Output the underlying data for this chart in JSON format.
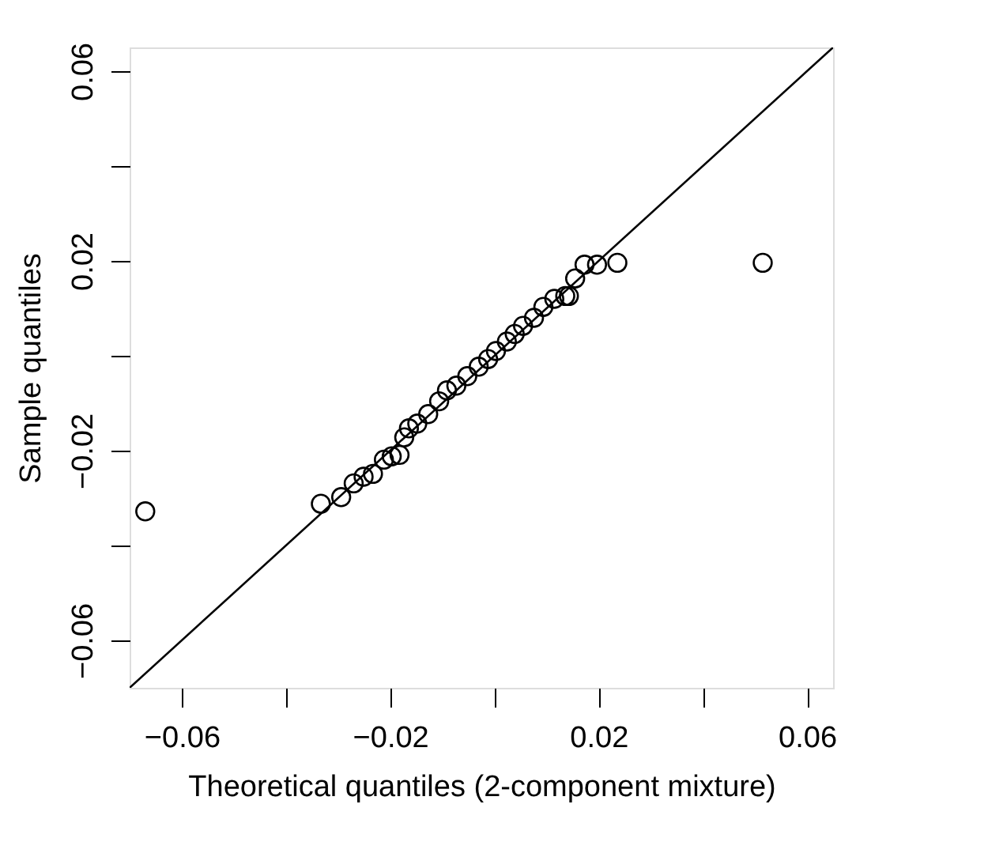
{
  "chart_data": {
    "type": "scatter",
    "xlabel": "Theoretical quantiles (2-component mixture)",
    "ylabel": "Sample quantiles",
    "xlim": [
      -0.07,
      0.065
    ],
    "ylim": [
      -0.07,
      0.065
    ],
    "xticks": [
      -0.06,
      {
        "value": -0.04,
        "label": null
      },
      -0.02,
      {
        "value": 0,
        "label": null
      },
      0.02,
      {
        "value": 0.04,
        "label": null
      },
      0.06
    ],
    "yticks": [
      -0.06,
      {
        "value": -0.04,
        "label": null
      },
      -0.02,
      {
        "value": 0,
        "label": null
      },
      0.02,
      {
        "value": 0.04,
        "label": null
      },
      0.06
    ],
    "grid": false,
    "series": [
      {
        "marker": "circle",
        "color": "#000000",
        "x": [
          -0.067,
          -0.0333,
          -0.0294,
          -0.027,
          -0.0251,
          -0.0233,
          -0.0212,
          -0.0197,
          -0.0182,
          -0.0173,
          -0.0164,
          -0.0148,
          -0.0127,
          -0.0106,
          -0.0091,
          -0.0073,
          -0.0052,
          -0.003,
          -0.0012,
          0.0003,
          0.0024,
          0.0039,
          0.0055,
          0.0076,
          0.0094,
          0.0115,
          0.0136,
          0.0143,
          0.0155,
          0.0173,
          0.0197,
          0.0236,
          0.0515
        ],
        "values": [
          -0.0328,
          -0.0312,
          -0.0298,
          -0.0269,
          -0.0255,
          -0.0249,
          -0.0219,
          -0.0212,
          -0.0209,
          -0.0172,
          -0.0153,
          -0.0143,
          -0.0123,
          -0.0096,
          -0.0073,
          -0.0063,
          -0.0043,
          -0.0023,
          -0.0007,
          0.001,
          0.003,
          0.0046,
          0.0063,
          0.008,
          0.0103,
          0.012,
          0.0126,
          0.0126,
          0.0163,
          0.0192,
          0.0192,
          0.0196,
          0.0196
        ]
      },
      {
        "type": "line",
        "marker": "none",
        "color": "#000000",
        "line_style": "solid",
        "x": [
          -0.07,
          0.065
        ],
        "values": [
          -0.07,
          0.065
        ]
      }
    ]
  }
}
